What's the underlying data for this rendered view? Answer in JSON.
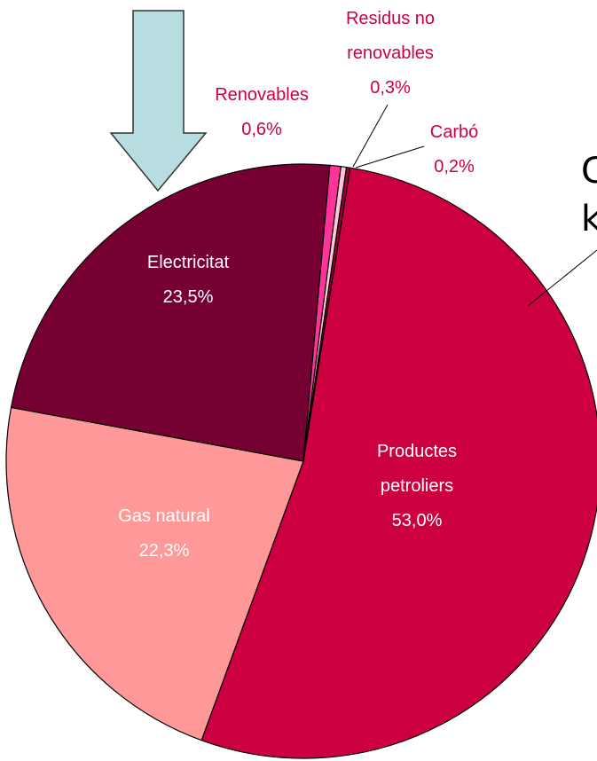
{
  "chart_data": {
    "type": "pie",
    "categories": [
      "Renovables",
      "Residus no renovables",
      "Carbó",
      "Productes petroliers",
      "Gas natural",
      "Electricitat"
    ],
    "values": [
      0.6,
      0.3,
      0.2,
      53.0,
      22.3,
      23.5
    ],
    "value_labels": [
      "0,6%",
      "0,3%",
      "0,2%",
      "53,0%",
      "22,3%",
      "23,5%"
    ],
    "colors": [
      "#ff3399",
      "#ffc6da",
      "#99003d",
      "#cc0040",
      "#ff9999",
      "#770033"
    ],
    "annotations": [
      "C",
      "k"
    ]
  }
}
